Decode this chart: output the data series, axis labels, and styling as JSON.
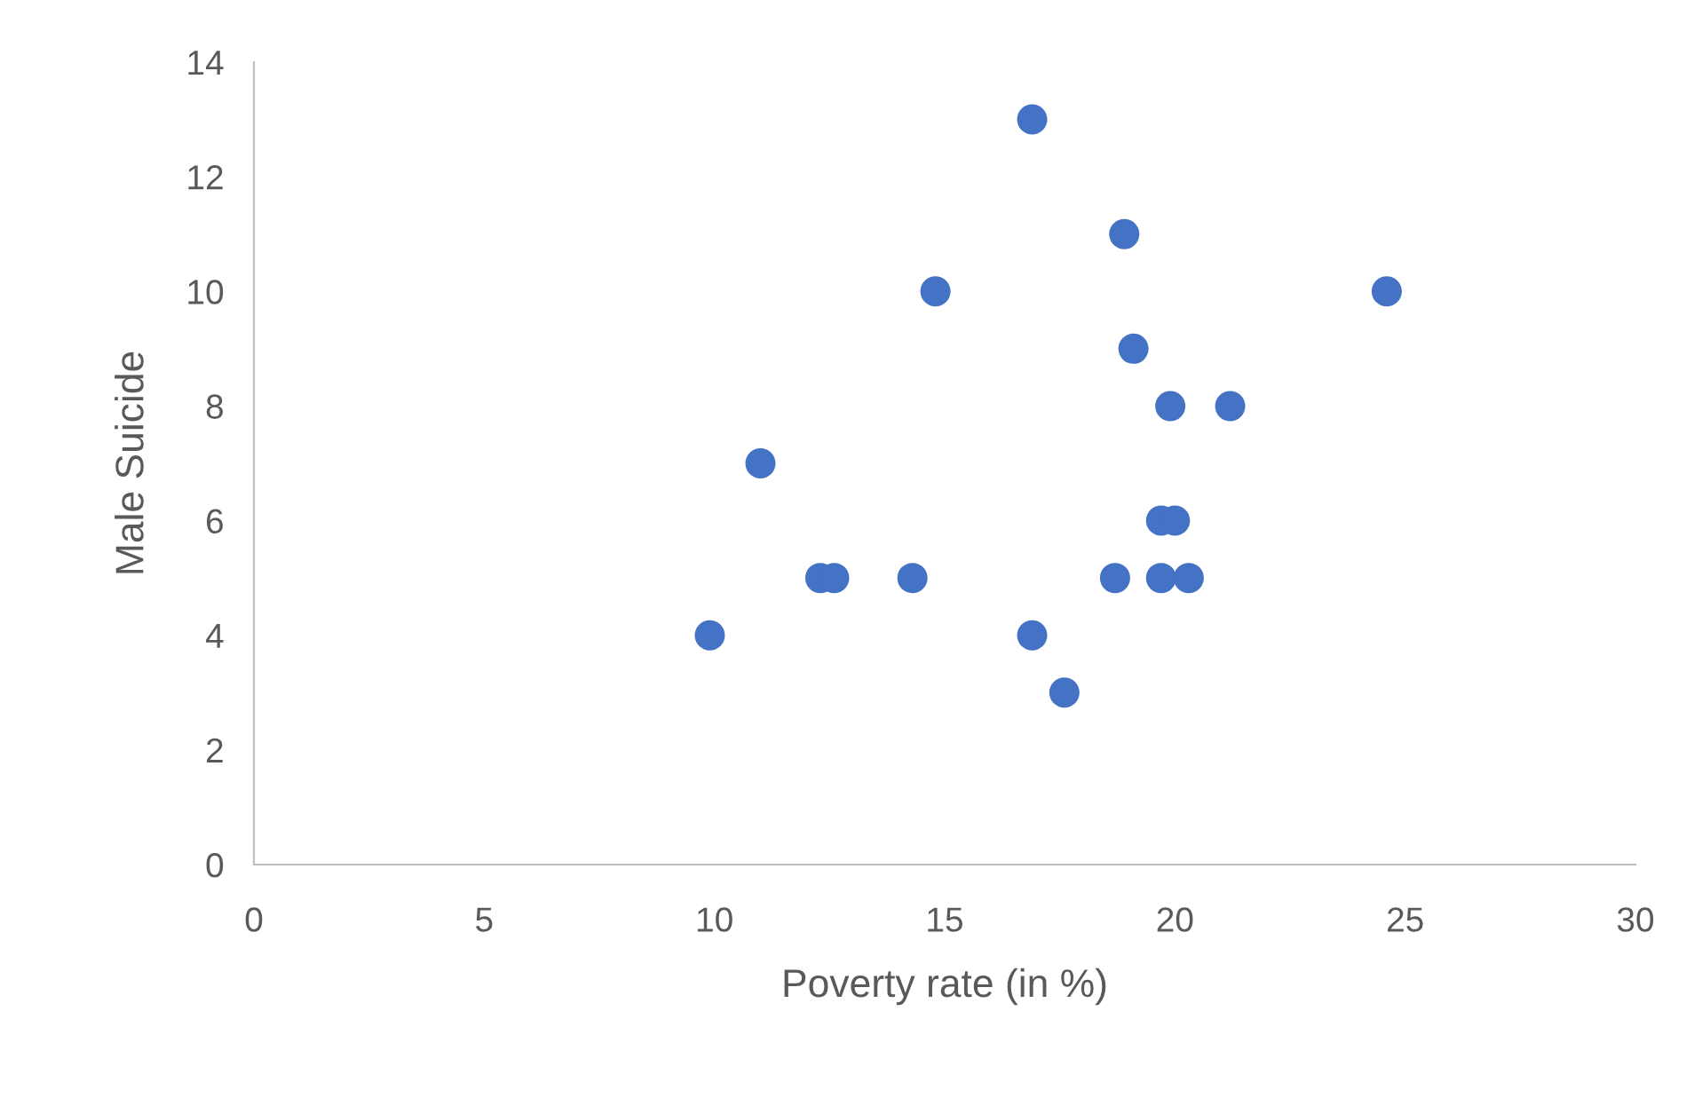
{
  "chart_data": {
    "type": "scatter",
    "xlabel": "Poverty rate (in %)",
    "ylabel": "Male Suicide",
    "x": [
      9.9,
      11.0,
      12.3,
      12.6,
      14.3,
      14.8,
      16.9,
      16.9,
      17.6,
      18.7,
      18.9,
      19.1,
      19.7,
      20.0,
      19.9,
      19.7,
      20.3,
      21.2,
      24.6
    ],
    "values": [
      4,
      7,
      5,
      5,
      5,
      10,
      13,
      4,
      3,
      5,
      11,
      9,
      6,
      6,
      8,
      5,
      5,
      8,
      10
    ],
    "color": "#4472c4",
    "marker": "circle",
    "xlim": [
      0,
      30
    ],
    "xticks": [
      0,
      5,
      10,
      15,
      20,
      25,
      30
    ],
    "ylim": [
      0,
      14
    ],
    "yticks": [
      0,
      2,
      4,
      6,
      8,
      10,
      12,
      14
    ],
    "grid": false
  }
}
